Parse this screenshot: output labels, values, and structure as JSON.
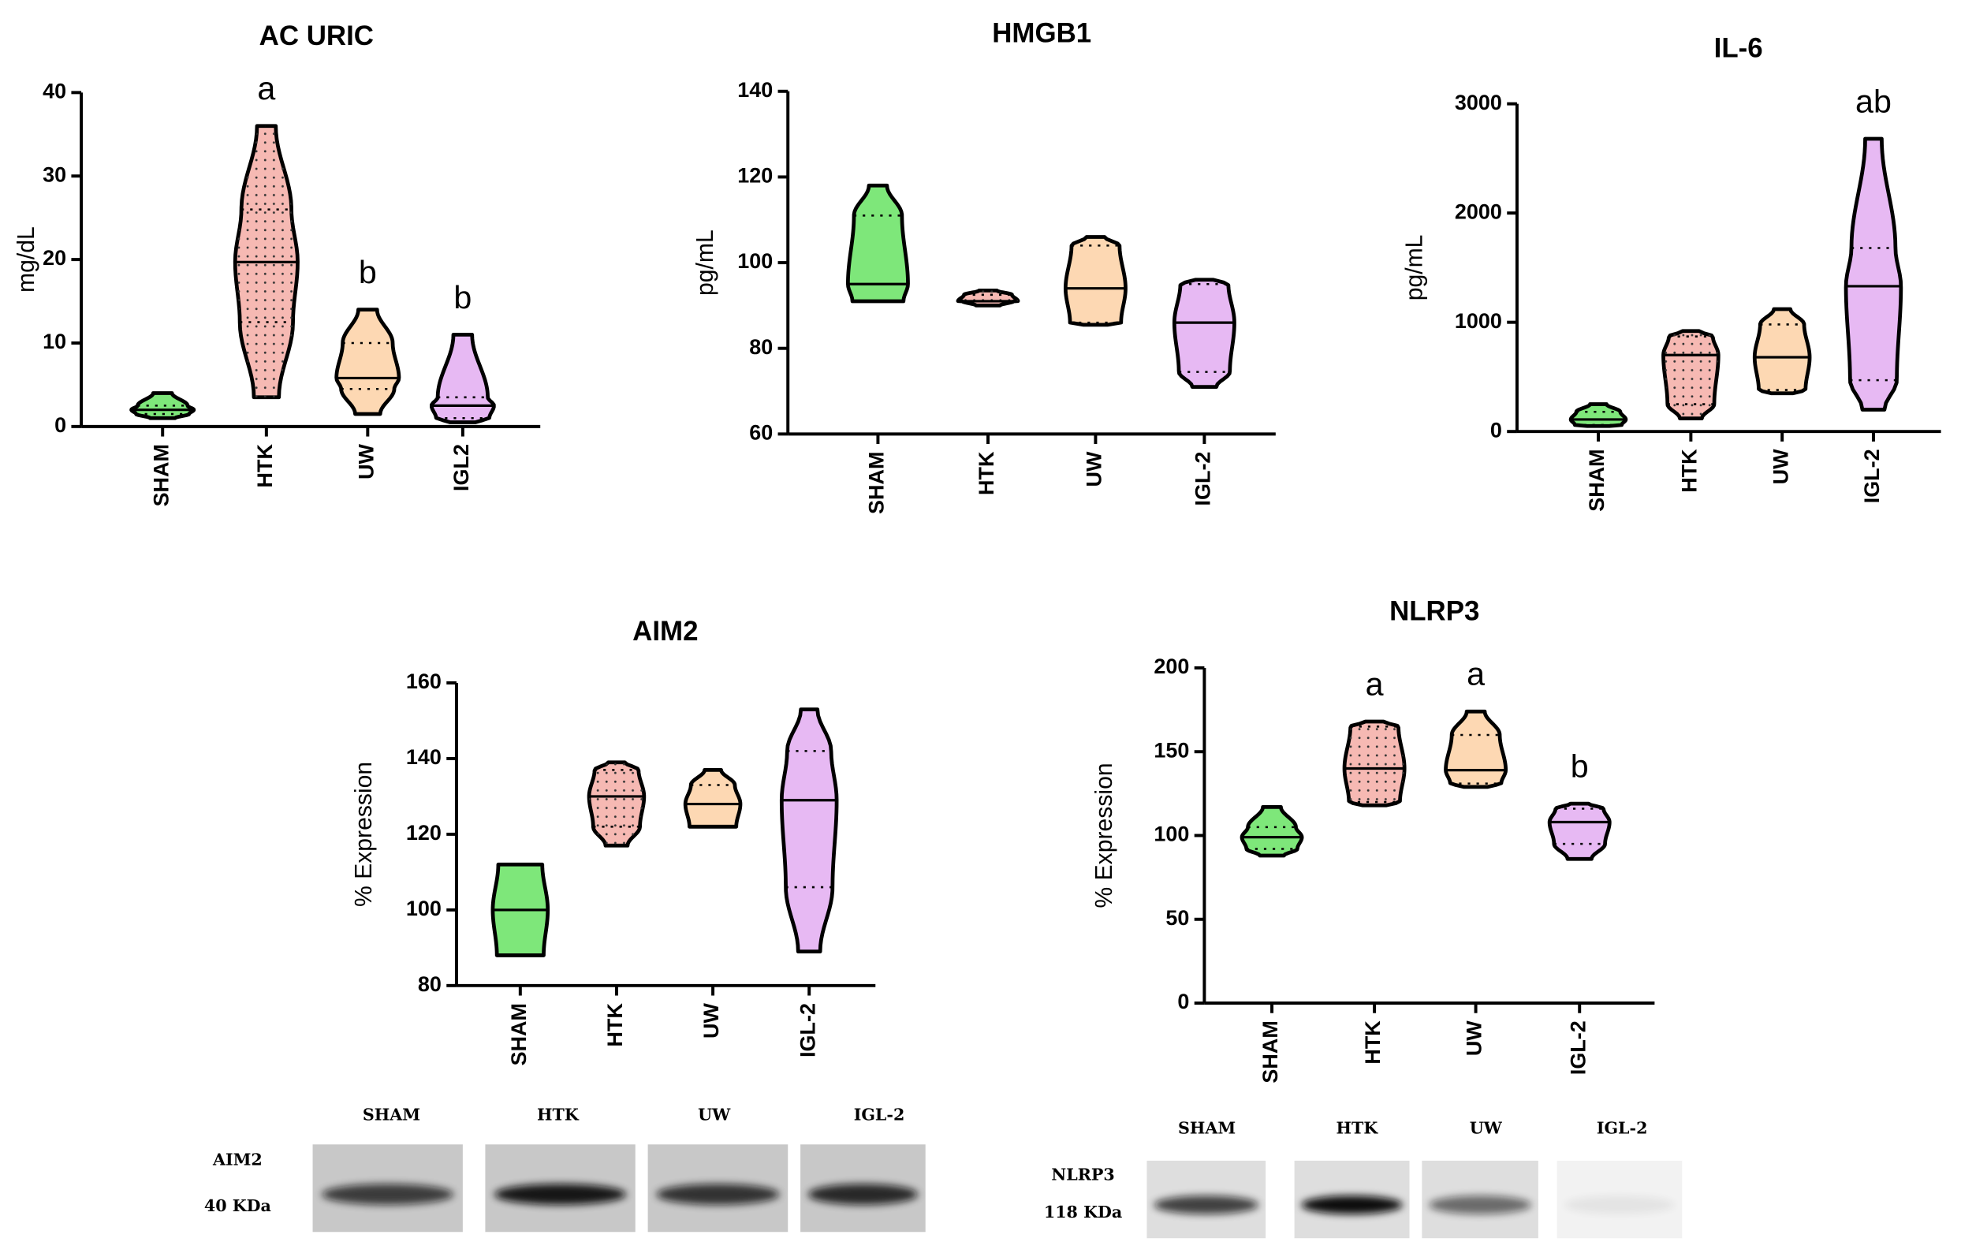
{
  "chart_data": [
    {
      "type": "violin",
      "title": "AC URIC",
      "ylabel": "mg/dL",
      "categories": [
        "SHAM",
        "HTK",
        "UW",
        "IGL2"
      ],
      "colors": [
        "#7ee77a",
        "#f6b9b3",
        "#fdd8b3",
        "#e7b9f3"
      ],
      "values": [
        {
          "min": 1,
          "q1": 1.5,
          "median": 2,
          "q3": 2.5,
          "max": 4
        },
        {
          "min": 3.5,
          "q1": 12.5,
          "median": 19.7,
          "q3": 26,
          "max": 36
        },
        {
          "min": 1.5,
          "q1": 4.5,
          "median": 5.8,
          "q3": 10,
          "max": 14
        },
        {
          "min": 0.5,
          "q1": 1,
          "median": 2.5,
          "q3": 3.5,
          "max": 11
        }
      ],
      "annotations": [
        null,
        "a",
        "b",
        "b"
      ],
      "ylim": [
        0,
        40
      ],
      "yticks": [
        0,
        10,
        20,
        30,
        40
      ]
    },
    {
      "type": "violin",
      "title": "HMGB1",
      "ylabel": "pg/mL",
      "categories": [
        "SHAM",
        "HTK",
        "UW",
        "IGL-2"
      ],
      "colors": [
        "#7ee77a",
        "#f6b9b3",
        "#fdd8b3",
        "#e7b9f3"
      ],
      "values": [
        {
          "min": 91,
          "q1": 91,
          "median": 95,
          "q3": 111,
          "max": 118
        },
        {
          "min": 90,
          "q1": 91,
          "median": 91,
          "q3": 92.5,
          "max": 93.5
        },
        {
          "min": 85.5,
          "q1": 86,
          "median": 94,
          "q3": 104,
          "max": 106
        },
        {
          "min": 71,
          "q1": 74.5,
          "median": 86,
          "q3": 95,
          "max": 96
        }
      ],
      "annotations": [
        null,
        null,
        null,
        null
      ],
      "ylim": [
        60,
        140
      ],
      "yticks": [
        60,
        80,
        100,
        120,
        140
      ]
    },
    {
      "type": "violin",
      "title": "IL-6",
      "ylabel": "pg/mL",
      "categories": [
        "SHAM",
        "HTK",
        "UW",
        "IGL-2"
      ],
      "colors": [
        "#7ee77a",
        "#f6b9b3",
        "#fdd8b3",
        "#e7b9f3"
      ],
      "values": [
        {
          "min": 50,
          "q1": 60,
          "median": 110,
          "q3": 180,
          "max": 250
        },
        {
          "min": 120,
          "q1": 250,
          "median": 700,
          "q3": 870,
          "max": 920
        },
        {
          "min": 350,
          "q1": 380,
          "median": 680,
          "q3": 980,
          "max": 1120
        },
        {
          "min": 200,
          "q1": 470,
          "median": 1330,
          "q3": 1680,
          "max": 2680
        }
      ],
      "annotations": [
        null,
        null,
        null,
        "ab"
      ],
      "ylim": [
        0,
        3000
      ],
      "yticks": [
        0,
        1000,
        2000,
        3000
      ]
    },
    {
      "type": "violin",
      "title": "AIM2",
      "ylabel": "% Expression",
      "categories": [
        "SHAM",
        "HTK",
        "UW",
        "IGL-2"
      ],
      "colors": [
        "#7ee77a",
        "#f6b9b3",
        "#fdd8b3",
        "#e7b9f3"
      ],
      "values": [
        {
          "min": 88,
          "q1": 88,
          "median": 100,
          "q3": 112,
          "max": 112
        },
        {
          "min": 117,
          "q1": 122,
          "median": 130,
          "q3": 137,
          "max": 139
        },
        {
          "min": 122,
          "q1": 122,
          "median": 128,
          "q3": 133,
          "max": 137
        },
        {
          "min": 89,
          "q1": 106,
          "median": 129,
          "q3": 142,
          "max": 153
        }
      ],
      "annotations": [
        null,
        null,
        null,
        null
      ],
      "ylim": [
        80,
        160
      ],
      "yticks": [
        80,
        100,
        120,
        140,
        160
      ]
    },
    {
      "type": "violin",
      "title": "NLRP3",
      "ylabel": "% Expression",
      "categories": [
        "SHAM",
        "HTK",
        "UW",
        "IGL-2"
      ],
      "colors": [
        "#7ee77a",
        "#f6b9b3",
        "#fdd8b3",
        "#e7b9f3"
      ],
      "values": [
        {
          "min": 88,
          "q1": 92,
          "median": 99,
          "q3": 105,
          "max": 117
        },
        {
          "min": 118,
          "q1": 120,
          "median": 140,
          "q3": 165,
          "max": 168
        },
        {
          "min": 129,
          "q1": 131,
          "median": 139,
          "q3": 160,
          "max": 174
        },
        {
          "min": 86,
          "q1": 95,
          "median": 108,
          "q3": 116,
          "max": 119
        }
      ],
      "annotations": [
        null,
        "a",
        "a",
        "b"
      ],
      "ylim": [
        0,
        200
      ],
      "yticks": [
        0,
        50,
        100,
        150,
        200
      ]
    }
  ],
  "blots": [
    {
      "protein": "AIM2",
      "size": "40 KDa",
      "lanes": [
        "SHAM",
        "HTK",
        "UW",
        "IGL-2"
      ]
    },
    {
      "protein": "NLRP3",
      "size": "118 KDa",
      "lanes": [
        "SHAM",
        "HTK",
        "UW",
        "IGL-2"
      ]
    }
  ]
}
